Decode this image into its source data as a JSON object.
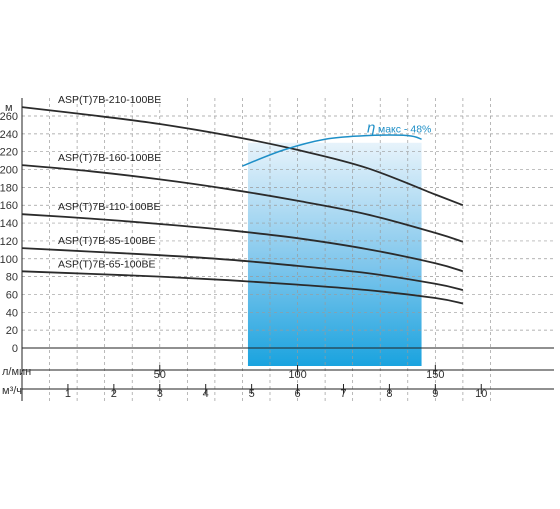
{
  "chart_data": {
    "type": "line",
    "title": "",
    "ylabel": "м",
    "xlabel_primary": "л/мин",
    "xlabel_secondary": "м³/ч",
    "ylim": [
      0,
      260
    ],
    "yticks": [
      0,
      20,
      40,
      60,
      80,
      100,
      120,
      140,
      160,
      180,
      200,
      220,
      240,
      260
    ],
    "xlim_lpm": [
      0,
      180
    ],
    "xticks_lpm": [
      50,
      100,
      150
    ],
    "xticks_m3h": [
      1,
      2,
      3,
      4,
      5,
      6,
      7,
      8,
      9,
      10
    ],
    "grid": true,
    "efficiency_zone_lpm": [
      82,
      145
    ],
    "efficiency_label_symbol": "η",
    "efficiency_label_text": "макс - 48%",
    "series": [
      {
        "name": "ASP(T)7B-210-100BE",
        "x": [
          0,
          25,
          50,
          75,
          100,
          125,
          150,
          160
        ],
        "y": [
          270,
          261,
          251,
          238,
          222,
          202,
          172,
          160
        ]
      },
      {
        "name": "ASP(T)7B-160-100BE",
        "x": [
          0,
          25,
          50,
          75,
          100,
          125,
          150,
          160
        ],
        "y": [
          205,
          198,
          189,
          178,
          165,
          150,
          129,
          119
        ]
      },
      {
        "name": "ASP(T)7B-110-100BE",
        "x": [
          0,
          25,
          50,
          75,
          100,
          125,
          150,
          160
        ],
        "y": [
          150,
          145,
          139,
          132,
          123,
          111,
          95,
          86
        ]
      },
      {
        "name": "ASP(T)7B-85-100BE",
        "x": [
          0,
          25,
          50,
          75,
          100,
          125,
          150,
          160
        ],
        "y": [
          112,
          108,
          104,
          99,
          92,
          84,
          72,
          65
        ]
      },
      {
        "name": "ASP(T)7B-65-100BE",
        "x": [
          0,
          25,
          50,
          75,
          100,
          125,
          150,
          160
        ],
        "y": [
          86,
          83,
          80,
          76,
          71,
          65,
          56,
          50
        ]
      }
    ],
    "efficiency_curve": {
      "x": [
        80,
        95,
        110,
        125,
        140,
        145
      ],
      "y": [
        204,
        222,
        234,
        238,
        238,
        234
      ]
    }
  }
}
